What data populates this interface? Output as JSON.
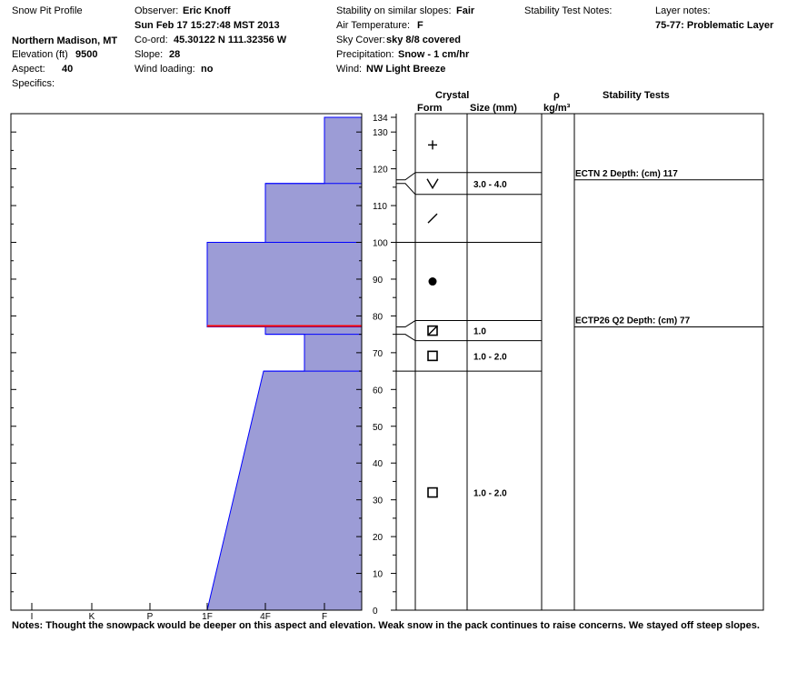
{
  "header": {
    "title": "Snow Pit Profile",
    "location": "Northern Madison, MT",
    "elevation_label": "Elevation (ft)",
    "elevation": "9500",
    "aspect_label": "Aspect:",
    "aspect": "40",
    "specifics_label": "Specifics:",
    "observer_label": "Observer:",
    "observer": "Eric Knoff",
    "datetime": "Sun Feb 17 15:27:48 MST 2013",
    "coord_label": "Co-ord:",
    "coord": "45.30122 N 111.32356 W",
    "slope_label": "Slope:",
    "slope": "28",
    "wind_loading_label": "Wind loading:",
    "wind_loading": "no",
    "stability_label": "Stability on similar slopes:",
    "stability": "Fair",
    "air_temp_label": "Air Temperature:",
    "air_temp": "F",
    "sky_label": "Sky Cover:",
    "sky": "sky 8/8 covered",
    "precip_label": "Precipitation:",
    "precip": "Snow - 1 cm/hr",
    "wind_label": "Wind:",
    "wind": "NW Light Breeze",
    "stability_notes_label": "Stability Test Notes:",
    "layer_notes_label": "Layer notes:",
    "layer_notes": "75-77: Problematic Layer"
  },
  "columns": {
    "crystal": "Crystal",
    "form": "Form",
    "size": "Size (mm)",
    "rho": "ρ",
    "rho_unit": "kg/m³",
    "stability_tests": "Stability Tests"
  },
  "notes": "Notes:  Thought the snowpack would be deeper on this aspect and elevation.  Weak snow in the pack continues to raise concerns.  We stayed off steep slopes.",
  "colors": {
    "fill": "#9c9cd6",
    "edge": "#0000ff",
    "problem": "#ff0000",
    "ink": "#000000"
  },
  "chart_data": {
    "type": "area",
    "ylabel": "",
    "ylim": [
      0,
      134
    ],
    "yticks_major": [
      0,
      10,
      20,
      30,
      40,
      50,
      60,
      70,
      80,
      90,
      100,
      110,
      120,
      130,
      134
    ],
    "hardness_scale": [
      "I",
      "K",
      "P",
      "1F",
      "4F",
      "F"
    ],
    "hardness_profile": [
      {
        "height": 0,
        "hardness": "1F"
      },
      {
        "height": 65,
        "hardness": "4F+"
      },
      {
        "height": 65,
        "hardness": "F-"
      },
      {
        "height": 75,
        "hardness": "F-"
      },
      {
        "height": 75,
        "hardness": "4F"
      },
      {
        "height": 77,
        "hardness": "4F"
      },
      {
        "height": 77,
        "hardness": "1F"
      },
      {
        "height": 100,
        "hardness": "1F"
      },
      {
        "height": 100,
        "hardness": "4F"
      },
      {
        "height": 116,
        "hardness": "4F"
      },
      {
        "height": 116,
        "hardness": "F"
      },
      {
        "height": 134,
        "hardness": "F"
      }
    ],
    "layer_boundaries": [
      65,
      75,
      77,
      100,
      116,
      117,
      134
    ],
    "problem_layer_height": 77,
    "crystal_layers": [
      {
        "top": 134,
        "bottom": 117,
        "form_icon": "plus-icon",
        "size": ""
      },
      {
        "top": 117,
        "bottom": 116,
        "form_icon": "vee-icon",
        "size": "3.0 - 4.0"
      },
      {
        "top": 116,
        "bottom": 100,
        "form_icon": "slash-icon",
        "size": ""
      },
      {
        "top": 100,
        "bottom": 77,
        "form_icon": "dot-icon",
        "size": ""
      },
      {
        "top": 77,
        "bottom": 75,
        "form_icon": "slashed-square-icon",
        "size": "1.0"
      },
      {
        "top": 75,
        "bottom": 65,
        "form_icon": "square-icon",
        "size": "1.0 - 2.0"
      },
      {
        "top": 65,
        "bottom": 0,
        "form_icon": "square-icon",
        "size": "1.0 - 2.0"
      }
    ],
    "stability_tests": [
      {
        "label": "ECTN 2  Depth: (cm) 117",
        "height": 117
      },
      {
        "label": "ECTP26 Q2 Depth: (cm) 77",
        "height": 77
      }
    ]
  }
}
